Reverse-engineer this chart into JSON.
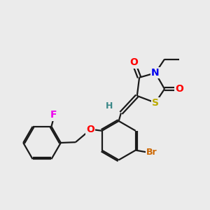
{
  "bg_color": "#ebebeb",
  "bond_color": "#1a1a1a",
  "atom_colors": {
    "O": "#ff0000",
    "N": "#0000ee",
    "S": "#bbaa00",
    "Br": "#cc6600",
    "F": "#ee00ee",
    "H": "#3a8888",
    "C": "#1a1a1a"
  },
  "lw": 1.6,
  "fs": 10
}
